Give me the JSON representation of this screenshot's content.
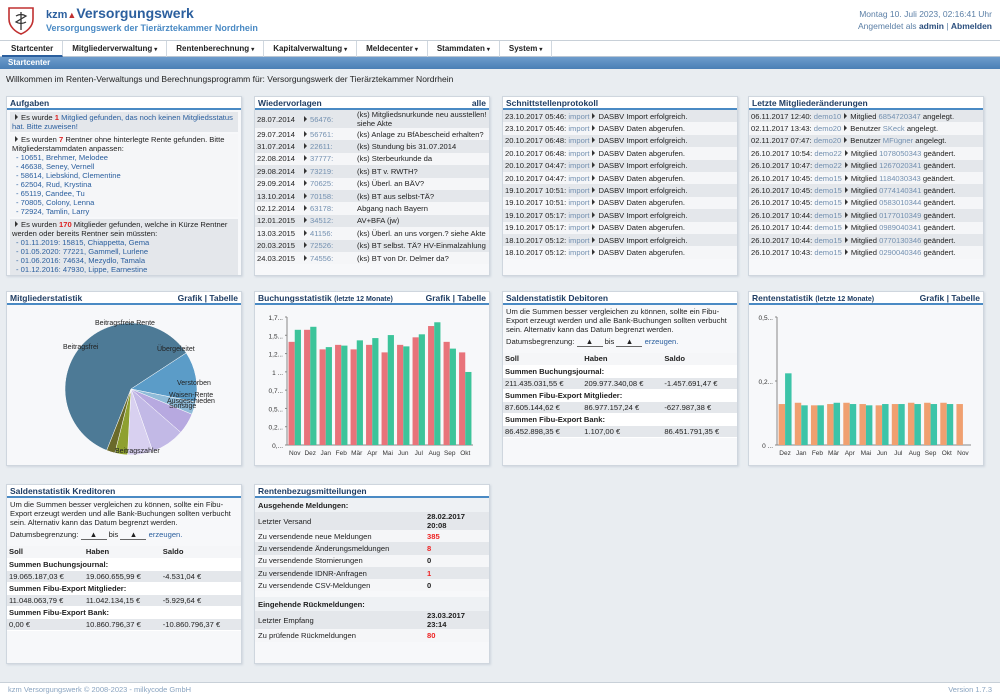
{
  "header": {
    "brand_prefix": "kzm",
    "brand_name": "Versorgungswerk",
    "subtitle": "Versorgungswerk der Tierärztekammer Nordrhein",
    "datetime": "Montag 10. Juli 2023, 02:16:41 Uhr",
    "logged_in_label": "Angemeldet als",
    "user": "admin",
    "logout": "Abmelden"
  },
  "menu": [
    {
      "label": "Startcenter",
      "active": true
    },
    {
      "label": "Mitgliederverwaltung",
      "caret": "▾"
    },
    {
      "label": "Rentenberechnung",
      "caret": "▾"
    },
    {
      "label": "Kapitalverwaltung",
      "caret": "▾"
    },
    {
      "label": "Meldecenter",
      "caret": "▾"
    },
    {
      "label": "Stammdaten",
      "caret": "▾"
    },
    {
      "label": "System",
      "caret": "▾"
    }
  ],
  "breadcrumb": "Startcenter",
  "welcome": "Willkommen im Renten-Verwaltungs und Berechnungsprogramm für: Versorgungswerk der Tierärztekammer Nordrhein",
  "aufgaben": {
    "title": "Aufgaben",
    "t1a": "Es wurde ",
    "t1n": "1",
    "t1b": " Mitglied gefunden, das noch keinen Mitgliedsstatus hat. Bitte zuweisen!",
    "t2a": "Es wurden ",
    "t2n": "7",
    "t2b": " Rentner ohne hinterlegte Rente gefunden. Bitte Mitgliederstammdaten anpassen:",
    "t2list": [
      "- 10651, Brehmer, Melodee",
      "- 46638, Seney, Vernell",
      "- 58614, Liebskind, Clementine",
      "- 62504, Rud, Krystina",
      "- 65119, Candee, Tu",
      "- 70805, Colony, Lenna",
      "- 72924, Tamlin, Larry"
    ],
    "t3a": "Es wurden ",
    "t3n": "170",
    "t3b": " Mitglieder gefunden, welche in Kürze Rentner werden oder bereits Rentner sein müssten:",
    "t3list": [
      "- 01.11.2019: 15815, Chiappetta, Gema",
      "- 01.05.2020: 77221, Gammell, Lurlene",
      "- 01.06.2016: 74634, Mezydlo, Tamala",
      "- 01.12.2016: 47930, Lippe, Earnestine"
    ]
  },
  "wiedervorlagen": {
    "title": "Wiedervorlagen",
    "all": "alle",
    "rows": [
      [
        "28.07.2014",
        "56476:",
        "(ks) Mitgliedsnurkunde neu ausstellen! siehe Akte"
      ],
      [
        "29.07.2014",
        "56761:",
        "(ks) Anlage zu BfAbescheid erhalten?"
      ],
      [
        "31.07.2014",
        "22611:",
        "(ks) Stundung bis 31.07.2014"
      ],
      [
        "22.08.2014",
        "37777:",
        "(ks) Sterbeurkunde da"
      ],
      [
        "29.08.2014",
        "73219:",
        "(ks) BT v. RWTH?"
      ],
      [
        "29.09.2014",
        "70625:",
        "(ks) Überl. an BÄV?"
      ],
      [
        "13.10.2014",
        "70158:",
        "(ks) BT aus selbst-TÄ?"
      ],
      [
        "02.12.2014",
        "63178:",
        "Abgang nach Bayern"
      ],
      [
        "12.01.2015",
        "34512:",
        "AV+BFA (jw)"
      ],
      [
        "13.03.2015",
        "41156:",
        "(ks) Überl. an uns vorgen.? siehe Akte"
      ],
      [
        "20.03.2015",
        "72526:",
        "(ks) BT selbst. TÄ? HV-Einmalzahlung"
      ],
      [
        "24.03.2015",
        "74556:",
        "(ks) BT von Dr. Delmer da?"
      ]
    ]
  },
  "schnittstellen": {
    "title": "Schnittstellenprotokoll",
    "rows": [
      [
        "23.10.2017 05:46:",
        "import",
        "DASBV Import erfolgreich."
      ],
      [
        "23.10.2017 05:46:",
        "import",
        "DASBV Daten abgerufen."
      ],
      [
        "20.10.2017 06:48:",
        "import",
        "DASBV Import erfolgreich."
      ],
      [
        "20.10.2017 06:48:",
        "import",
        "DASBV Daten abgerufen."
      ],
      [
        "20.10.2017 04:47:",
        "import",
        "DASBV Import erfolgreich."
      ],
      [
        "20.10.2017 04:47:",
        "import",
        "DASBV Daten abgerufen."
      ],
      [
        "19.10.2017 10:51:",
        "import",
        "DASBV Import erfolgreich."
      ],
      [
        "19.10.2017 10:51:",
        "import",
        "DASBV Daten abgerufen."
      ],
      [
        "19.10.2017 05:17:",
        "import",
        "DASBV Import erfolgreich."
      ],
      [
        "19.10.2017 05:17:",
        "import",
        "DASBV Daten abgerufen."
      ],
      [
        "18.10.2017 05:12:",
        "import",
        "DASBV Import erfolgreich."
      ],
      [
        "18.10.2017 05:12:",
        "import",
        "DASBV Daten abgerufen."
      ]
    ]
  },
  "mitgliederaenderungen": {
    "title": "Letzte Mitgliederänderungen",
    "rows": [
      [
        "06.11.2017 12:40:",
        "demo10",
        "Mitglied ",
        "6854720347",
        " angelegt."
      ],
      [
        "02.11.2017 13:43:",
        "demo20",
        "Benutzer ",
        "SKeck",
        " angelegt."
      ],
      [
        "02.11.2017 07:47:",
        "demo20",
        "Benutzer ",
        "MFügner",
        " angelegt."
      ],
      [
        "26.10.2017 10:54:",
        "demo22",
        "Mitglied ",
        "1078050343",
        " geändert."
      ],
      [
        "26.10.2017 10:47:",
        "demo22",
        "Mitglied ",
        "1267020341",
        " geändert."
      ],
      [
        "26.10.2017 10:45:",
        "demo15",
        "Mitglied ",
        "1184030343",
        " geändert."
      ],
      [
        "26.10.2017 10:45:",
        "demo15",
        "Mitglied ",
        "0774140341",
        " geändert."
      ],
      [
        "26.10.2017 10:45:",
        "demo15",
        "Mitglied ",
        "0583010344",
        " geändert."
      ],
      [
        "26.10.2017 10:44:",
        "demo15",
        "Mitglied ",
        "0177010349",
        " geändert."
      ],
      [
        "26.10.2017 10:44:",
        "demo15",
        "Mitglied ",
        "0989040341",
        " geändert."
      ],
      [
        "26.10.2017 10:44:",
        "demo15",
        "Mitglied ",
        "0770130346",
        " geändert."
      ],
      [
        "26.10.2017 10:43:",
        "demo15",
        "Mitglied ",
        "0290040346",
        " geändert."
      ]
    ]
  },
  "mitgliederstatistik": {
    "title": "Mitgliederstatistik",
    "grafik": "Grafik",
    "tabelle": "Tabelle"
  },
  "buchungsstatistik": {
    "title": "Buchungsstatistik",
    "period": "(letzte 12 Monate)",
    "grafik": "Grafik",
    "tabelle": "Tabelle"
  },
  "rentenstatistik": {
    "title": "Rentenstatistik",
    "period": "(letzte 12 Monate)",
    "grafik": "Grafik",
    "tabelle": "Tabelle"
  },
  "saldo_debitoren": {
    "title": "Saldenstatistik Debitoren",
    "note": "Um die Summen besser vergleichen zu können, sollte ein Fibu-Export erzeugt werden und alle Bank-Buchungen sollten verbucht sein. Alternativ kann das Datum begrenzt werden.",
    "date_label": "Datumsbegrenzung:",
    "bis": "bis",
    "erzeugen": "erzeugen.",
    "col_soll": "Soll",
    "col_haben": "Haben",
    "col_saldo": "Saldo",
    "sec1": "Summen Buchungsjournal:",
    "r1": [
      "211.435.031,55 €",
      "209.977.340,08 €",
      "-1.457.691,47 €"
    ],
    "sec2": "Summen Fibu-Export Mitglieder:",
    "r2": [
      "87.605.144,62 €",
      "86.977.157,24 €",
      "-627.987,38 €"
    ],
    "sec3": "Summen Fibu-Export Bank:",
    "r3": [
      "86.452.898,35 €",
      "1.107,00 €",
      "86.451.791,35 €"
    ]
  },
  "saldo_kreditoren": {
    "title": "Saldenstatistik Kreditoren",
    "note": "Um die Summen besser vergleichen zu können, sollte ein Fibu-Export erzeugt werden und alle Bank-Buchungen sollten verbucht sein. Alternativ kann das Datum begrenzt werden.",
    "date_label": "Datumsbegrenzung:",
    "bis": "bis",
    "erzeugen": "erzeugen.",
    "col_soll": "Soll",
    "col_haben": "Haben",
    "col_saldo": "Saldo",
    "sec1": "Summen Buchungsjournal:",
    "r1": [
      "19.065.187,03 €",
      "19.060.655,99 €",
      "-4.531,04 €"
    ],
    "sec2": "Summen Fibu-Export Mitglieder:",
    "r2": [
      "11.048.063,79 €",
      "11.042.134,15 €",
      "-5.929,64 €"
    ],
    "sec3": "Summen Fibu-Export Bank:",
    "r3": [
      "0,00 €",
      "10.860.796,37 €",
      "-10.860.796,37 €"
    ]
  },
  "rentenbezug": {
    "title": "Rentenbezugsmitteilungen",
    "sec1": "Ausgehende Meldungen:",
    "out": [
      [
        "Letzter Versand",
        "28.02.2017 20:08",
        false
      ],
      [
        "Zu versendende neue Meldungen",
        "385",
        true
      ],
      [
        "Zu versendende Änderungsmeldungen",
        "8",
        true
      ],
      [
        "Zu versendende Stornierungen",
        "0",
        false
      ],
      [
        "Zu versendende IDNR-Anfragen",
        "1",
        true
      ],
      [
        "Zu versendende CSV-Meldungen",
        "0",
        false
      ]
    ],
    "sec2": "Eingehende Rückmeldungen:",
    "in": [
      [
        "Letzter Empfang",
        "23.03.2017 23:14",
        false
      ],
      [
        "Zu prüfende Rückmeldungen",
        "80",
        true
      ]
    ]
  },
  "footer": {
    "left": "kzm Versorgungswerk © 2008-2023 - milkycode GmbH",
    "right": "Version 1.7.3"
  },
  "chart_data": [
    {
      "type": "pie",
      "title": "Mitgliederstatistik",
      "labels": [
        "Beitragszahler",
        "Beitragsfrei",
        "Beitragsfreie Rente",
        "Übergeleitet",
        "Verstorben",
        "Waisen-Rente",
        "Ausgeschieden",
        "Sonstige"
      ],
      "values": [
        58,
        12,
        3,
        5,
        8,
        6,
        3,
        2
      ],
      "colors": [
        "#4d7a96",
        "#5b9cc8",
        "#8fbbd8",
        "#b7a9e0",
        "#c2b9e6",
        "#d8d0f0",
        "#8ea030",
        "#6a6a2a"
      ]
    },
    {
      "type": "bar",
      "title": "Buchungsstatistik",
      "categories": [
        "Nov",
        "Dez",
        "Jan",
        "Feb",
        "Mär",
        "Apr",
        "Mai",
        "Jun",
        "Jul",
        "Aug",
        "Sep",
        "Okt"
      ],
      "series": [
        {
          "values": [
            1.37,
            1.53,
            1.27,
            1.33,
            1.27,
            1.33,
            1.23,
            1.33,
            1.43,
            1.58,
            1.37,
            1.23
          ]
        },
        {
          "values": [
            1.53,
            1.57,
            1.3,
            1.32,
            1.39,
            1.42,
            1.46,
            1.31,
            1.47,
            1.63,
            1.28,
            0.97
          ]
        }
      ],
      "colors": [
        "#e8737a",
        "#3cc49a"
      ],
      "ylim": [
        0,
        1.7
      ],
      "yticks": [
        "0,...",
        "0,2...",
        "0,5...",
        "0,7...",
        "1 ...",
        "1,2...",
        "1,5...",
        "1,7..."
      ]
    },
    {
      "type": "bar",
      "title": "Rentenstatistik",
      "categories": [
        "Dez",
        "Jan",
        "Feb",
        "Mär",
        "Apr",
        "Mai",
        "Jun",
        "Jul",
        "Aug",
        "Sep",
        "Okt",
        "Nov"
      ],
      "series": [
        {
          "values": [
            0.16,
            0.165,
            0.155,
            0.16,
            0.165,
            0.16,
            0.155,
            0.16,
            0.165,
            0.165,
            0.165,
            0.16
          ]
        },
        {
          "values": [
            0.28,
            0.155,
            0.155,
            0.165,
            0.16,
            0.155,
            0.16,
            0.16,
            0.16,
            0.16,
            0.16,
            0
          ]
        }
      ],
      "colors": [
        "#f0a070",
        "#3cc4a8"
      ],
      "ylim": [
        0,
        0.5
      ],
      "yticks": [
        "0 ...",
        "0,2...",
        "0,5..."
      ]
    }
  ]
}
